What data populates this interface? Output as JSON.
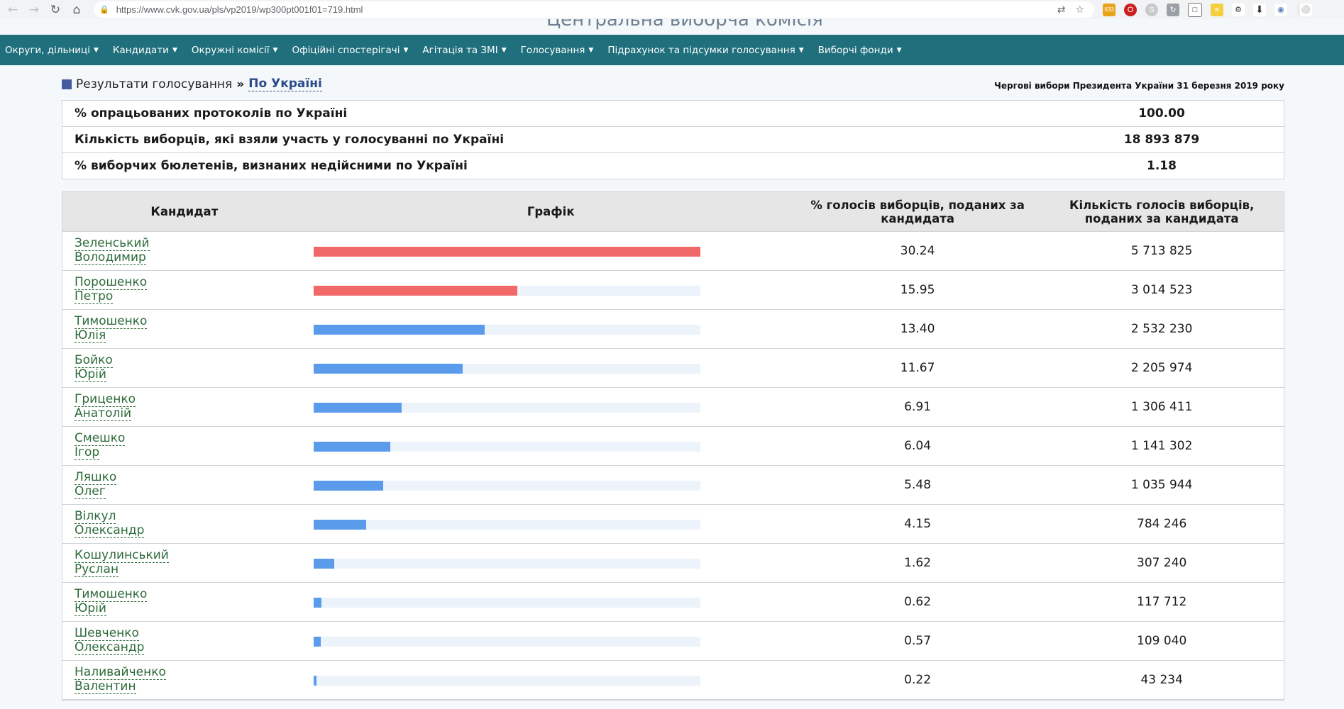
{
  "browser": {
    "url": "https://www.cvk.gov.ua/pls/vp2019/wp300pt001f01=719.html",
    "badge": "633"
  },
  "site": {
    "title": "Центральна виборча комісія"
  },
  "nav": {
    "items": [
      "Округи, дільниці",
      "Кандидати",
      "Окружні комісії",
      "Офіційні спостерігачі",
      "Агітація та ЗМІ",
      "Голосування",
      "Підрахунок та підсумки голосування",
      "Виборчі фонди"
    ]
  },
  "breadcrumb": {
    "section": "Результати голосування",
    "current": "По Україні"
  },
  "election_name": "Чергові вибори Президента України 31 березня 2019 року",
  "summary": [
    {
      "label": "% опрацьованих протоколів по Україні",
      "value": "100.00"
    },
    {
      "label": "Кількість виборців, які взяли участь у голосуванні по Україні",
      "value": "18 893 879"
    },
    {
      "label": "% виборчих бюлетенів, визнаних недійсними по Україні",
      "value": "1.18"
    }
  ],
  "results_header": {
    "candidate": "Кандидат",
    "chart": "Графік",
    "percent": "% голосів виборців, поданих за кандидата",
    "votes": "Кількість голосів виборців, поданих за кандидата"
  },
  "colors": {
    "top_bar": "#f06868",
    "other_bar": "#5b9bec",
    "track": "#edf3fb"
  },
  "chart_data": {
    "type": "bar",
    "orientation": "horizontal",
    "xlim": [
      0,
      30.24
    ],
    "categories": [
      "Зеленський Володимир",
      "Порошенко Петро",
      "Тимошенко Юлія",
      "Бойко Юрій",
      "Гриценко Анатолій",
      "Смешко Ігор",
      "Ляшко Олег",
      "Вілкул Олександр",
      "Кошулинський Руслан",
      "Тимошенко Юрій",
      "Шевченко Олександр",
      "Наливайченко Валентин"
    ],
    "values": [
      30.24,
      15.95,
      13.4,
      11.67,
      6.91,
      6.04,
      5.48,
      4.15,
      1.62,
      0.62,
      0.57,
      0.22
    ]
  },
  "candidates": [
    {
      "surname": "Зеленський",
      "name": "Володимир",
      "percent": "30.24",
      "votes": "5 713 825",
      "highlight": true
    },
    {
      "surname": "Порошенко",
      "name": "Петро",
      "percent": "15.95",
      "votes": "3 014 523",
      "highlight": true
    },
    {
      "surname": "Тимошенко",
      "name": "Юлія",
      "percent": "13.40",
      "votes": "2 532 230",
      "highlight": false
    },
    {
      "surname": "Бойко",
      "name": "Юрій",
      "percent": "11.67",
      "votes": "2 205 974",
      "highlight": false
    },
    {
      "surname": "Гриценко",
      "name": "Анатолій",
      "percent": "6.91",
      "votes": "1 306 411",
      "highlight": false
    },
    {
      "surname": "Смешко",
      "name": "Ігор",
      "percent": "6.04",
      "votes": "1 141 302",
      "highlight": false
    },
    {
      "surname": "Ляшко",
      "name": "Олег",
      "percent": "5.48",
      "votes": "1 035 944",
      "highlight": false
    },
    {
      "surname": "Вілкул",
      "name": "Олександр",
      "percent": "4.15",
      "votes": "784 246",
      "highlight": false
    },
    {
      "surname": "Кошулинський",
      "name": "Руслан",
      "percent": "1.62",
      "votes": "307 240",
      "highlight": false
    },
    {
      "surname": "Тимошенко",
      "name": "Юрій",
      "percent": "0.62",
      "votes": "117 712",
      "highlight": false
    },
    {
      "surname": "Шевченко",
      "name": "Олександр",
      "percent": "0.57",
      "votes": "109 040",
      "highlight": false
    },
    {
      "surname": "Наливайченко",
      "name": "Валентин",
      "percent": "0.22",
      "votes": "43 234",
      "highlight": false
    }
  ]
}
